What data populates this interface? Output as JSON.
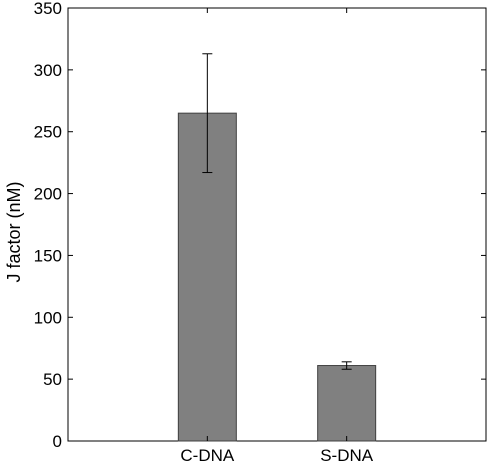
{
  "chart_data": {
    "type": "bar",
    "title": "",
    "xlabel": "",
    "ylabel": "J factor (nM)",
    "categories": [
      "C-DNA",
      "S-DNA"
    ],
    "values": [
      265,
      61
    ],
    "errors": [
      {
        "low": 217,
        "high": 313
      },
      {
        "low": 58,
        "high": 64
      }
    ],
    "ylim": [
      0,
      350
    ],
    "yticks": [
      0,
      50,
      100,
      150,
      200,
      250,
      300,
      350
    ],
    "xlim": [
      0,
      3
    ],
    "x": [
      1,
      2
    ],
    "grid": false,
    "legend": null,
    "colors": {
      "bar": "#808080",
      "bar_edge": "#404040",
      "axis": "#000000",
      "error_bar": "#000000"
    }
  }
}
